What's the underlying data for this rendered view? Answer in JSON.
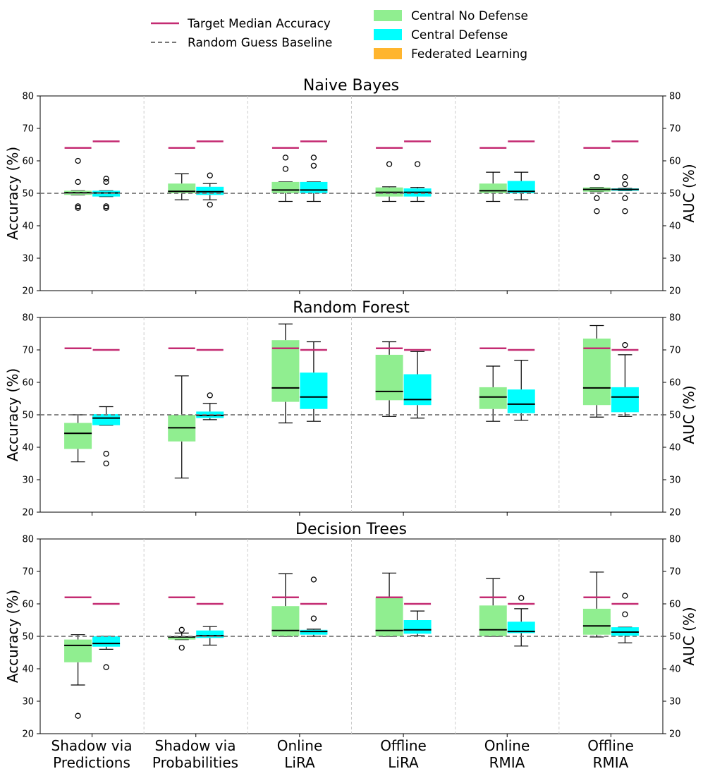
{
  "chart_data": {
    "type": "box",
    "legend": {
      "position": "top-center",
      "entries": [
        {
          "label": "Target Median Accuracy",
          "kind": "line",
          "color": "#c42b72"
        },
        {
          "label": "Random Guess Baseline",
          "kind": "dashed-line",
          "color": "#777777"
        },
        {
          "label": "Central No Defense",
          "kind": "patch",
          "color": "#90ee90"
        },
        {
          "label": "Central Defense",
          "kind": "patch",
          "color": "#00ffff"
        },
        {
          "label": "Federated Learning",
          "kind": "patch",
          "color": "#ffb52e"
        }
      ]
    },
    "categories": [
      [
        "Shadow via",
        "Predictions"
      ],
      [
        "Shadow via",
        "Probabilities"
      ],
      [
        "Online",
        "LiRA"
      ],
      [
        "Offline",
        "LiRA"
      ],
      [
        "Online",
        "RMIA"
      ],
      [
        "Offline",
        "RMIA"
      ]
    ],
    "ylabel_left": "Accuracy (%)",
    "ylabel_right": "AUC (%)",
    "ylim": [
      20,
      80
    ],
    "yticks": [
      20,
      30,
      40,
      50,
      60,
      70,
      80
    ],
    "baseline": 50,
    "colors": {
      "no_defense": "#90ee90",
      "defense": "#00ffff",
      "target": "#c42b72",
      "baseline": "#777777"
    },
    "panels": [
      {
        "title": "Naive Bayes",
        "groups": [
          {
            "target": [
              64,
              66
            ],
            "no_defense": {
              "whislo": 49.5,
              "q1": 49.5,
              "med": 50.2,
              "q3": 50.8,
              "whishi": 50.8,
              "fliers": [
                45.5,
                46,
                53.5,
                60
              ]
            },
            "defense": {
              "whislo": 49,
              "q1": 49,
              "med": 50.1,
              "q3": 50.8,
              "whishi": 50.8,
              "fliers": [
                45.5,
                46,
                53.5,
                54.5
              ]
            }
          },
          {
            "target": [
              64,
              66
            ],
            "no_defense": {
              "whislo": 48,
              "q1": 50,
              "med": 50.6,
              "q3": 53,
              "whishi": 56,
              "fliers": []
            },
            "defense": {
              "whislo": 48,
              "q1": 49.5,
              "med": 50.5,
              "q3": 52,
              "whishi": 53,
              "fliers": [
                46.5,
                55.5
              ]
            }
          },
          {
            "target": [
              64,
              66
            ],
            "no_defense": {
              "whislo": 47.5,
              "q1": 50,
              "med": 51,
              "q3": 53.5,
              "whishi": 53.5,
              "fliers": [
                57.5,
                61
              ]
            },
            "defense": {
              "whislo": 47.5,
              "q1": 50,
              "med": 51,
              "q3": 53.5,
              "whishi": 53.5,
              "fliers": [
                58.5,
                61
              ]
            }
          },
          {
            "target": [
              64,
              66
            ],
            "no_defense": {
              "whislo": 47.5,
              "q1": 49,
              "med": 50.3,
              "q3": 51.8,
              "whishi": 52,
              "fliers": [
                59
              ]
            },
            "defense": {
              "whislo": 47.5,
              "q1": 49,
              "med": 50.3,
              "q3": 51.5,
              "whishi": 51.8,
              "fliers": [
                59
              ]
            }
          },
          {
            "target": [
              64,
              66
            ],
            "no_defense": {
              "whislo": 47.5,
              "q1": 50,
              "med": 50.8,
              "q3": 53,
              "whishi": 56.5,
              "fliers": []
            },
            "defense": {
              "whislo": 48,
              "q1": 50,
              "med": 50.6,
              "q3": 53.8,
              "whishi": 56.5,
              "fliers": []
            }
          },
          {
            "target": [
              64,
              66
            ],
            "no_defense": {
              "whislo": 50.5,
              "q1": 50.5,
              "med": 51.2,
              "q3": 51.8,
              "whishi": 51.8,
              "fliers": [
                44.5,
                48.5,
                55,
                55
              ]
            },
            "defense": {
              "whislo": 50.8,
              "q1": 50.8,
              "med": 51.2,
              "q3": 51.5,
              "whishi": 51.5,
              "fliers": [
                44.5,
                48.5,
                52.8,
                55
              ]
            }
          }
        ]
      },
      {
        "title": "Random Forest",
        "groups": [
          {
            "target": [
              70.5,
              70
            ],
            "no_defense": {
              "whislo": 35.5,
              "q1": 39.5,
              "med": 44.3,
              "q3": 47.5,
              "whishi": 50,
              "fliers": []
            },
            "defense": {
              "whislo": 46.8,
              "q1": 46.8,
              "med": 49,
              "q3": 50.2,
              "whishi": 52.5,
              "fliers": [
                35,
                38
              ]
            }
          },
          {
            "target": [
              70.5,
              70
            ],
            "no_defense": {
              "whislo": 30.5,
              "q1": 41.8,
              "med": 46,
              "q3": 50,
              "whishi": 62,
              "fliers": []
            },
            "defense": {
              "whislo": 48.5,
              "q1": 49,
              "med": 49.8,
              "q3": 51,
              "whishi": 53.5,
              "fliers": [
                56
              ]
            }
          },
          {
            "target": [
              70.5,
              70
            ],
            "no_defense": {
              "whislo": 47.5,
              "q1": 54,
              "med": 58.3,
              "q3": 73,
              "whishi": 78,
              "fliers": []
            },
            "defense": {
              "whislo": 48,
              "q1": 51.8,
              "med": 55.5,
              "q3": 63,
              "whishi": 72.5,
              "fliers": []
            }
          },
          {
            "target": [
              70.5,
              70
            ],
            "no_defense": {
              "whislo": 49.5,
              "q1": 54.5,
              "med": 57.2,
              "q3": 68.5,
              "whishi": 72.5,
              "fliers": []
            },
            "defense": {
              "whislo": 49,
              "q1": 53,
              "med": 54.7,
              "q3": 62.5,
              "whishi": 69.5,
              "fliers": []
            }
          },
          {
            "target": [
              70.5,
              70
            ],
            "no_defense": {
              "whislo": 48,
              "q1": 51.8,
              "med": 55.5,
              "q3": 58.5,
              "whishi": 65,
              "fliers": []
            },
            "defense": {
              "whislo": 48.3,
              "q1": 50.5,
              "med": 53.3,
              "q3": 57.8,
              "whishi": 66.8,
              "fliers": []
            }
          },
          {
            "target": [
              70.5,
              70
            ],
            "no_defense": {
              "whislo": 49.3,
              "q1": 53,
              "med": 58.3,
              "q3": 73.5,
              "whishi": 77.5,
              "fliers": []
            },
            "defense": {
              "whislo": 49.5,
              "q1": 50.8,
              "med": 55.5,
              "q3": 58.5,
              "whishi": 68.5,
              "fliers": [
                71.5
              ]
            }
          }
        ]
      },
      {
        "title": "Decision Trees",
        "groups": [
          {
            "target": [
              62,
              60
            ],
            "no_defense": {
              "whislo": 35,
              "q1": 42,
              "med": 47.2,
              "q3": 49,
              "whishi": 50.5,
              "fliers": [
                25.5
              ]
            },
            "defense": {
              "whislo": 46,
              "q1": 46.8,
              "med": 47.8,
              "q3": 50,
              "whishi": 50,
              "fliers": [
                40.5
              ]
            }
          },
          {
            "target": [
              62,
              60
            ],
            "no_defense": {
              "whislo": 49,
              "q1": 49,
              "med": 49.8,
              "q3": 50,
              "whishi": 51,
              "fliers": [
                46.5,
                52
              ]
            },
            "defense": {
              "whislo": 47.3,
              "q1": 49.5,
              "med": 50.2,
              "q3": 51.8,
              "whishi": 53,
              "fliers": []
            }
          },
          {
            "target": [
              62,
              60
            ],
            "no_defense": {
              "whislo": 50,
              "q1": 50,
              "med": 51.8,
              "q3": 59.3,
              "whishi": 69.3,
              "fliers": []
            },
            "defense": {
              "whislo": 50,
              "q1": 50.5,
              "med": 51.5,
              "q3": 52,
              "whishi": 52.2,
              "fliers": [
                55.5,
                67.5
              ]
            }
          },
          {
            "target": [
              62,
              60
            ],
            "no_defense": {
              "whislo": 50,
              "q1": 50,
              "med": 51.8,
              "q3": 62,
              "whishi": 69.5,
              "fliers": []
            },
            "defense": {
              "whislo": 50.2,
              "q1": 50.8,
              "med": 52,
              "q3": 55,
              "whishi": 57.8,
              "fliers": []
            }
          },
          {
            "target": [
              62,
              60
            ],
            "no_defense": {
              "whislo": 50,
              "q1": 50,
              "med": 52,
              "q3": 59.5,
              "whishi": 67.8,
              "fliers": []
            },
            "defense": {
              "whislo": 47,
              "q1": 51,
              "med": 51.5,
              "q3": 54.5,
              "whishi": 58.5,
              "fliers": [
                61.8
              ]
            }
          },
          {
            "target": [
              62,
              60
            ],
            "no_defense": {
              "whislo": 49.8,
              "q1": 50.5,
              "med": 53.2,
              "q3": 58.5,
              "whishi": 69.8,
              "fliers": []
            },
            "defense": {
              "whislo": 48,
              "q1": 50.2,
              "med": 51.3,
              "q3": 52.8,
              "whishi": 52.8,
              "fliers": [
                56.8,
                62.5
              ]
            }
          }
        ]
      }
    ]
  }
}
